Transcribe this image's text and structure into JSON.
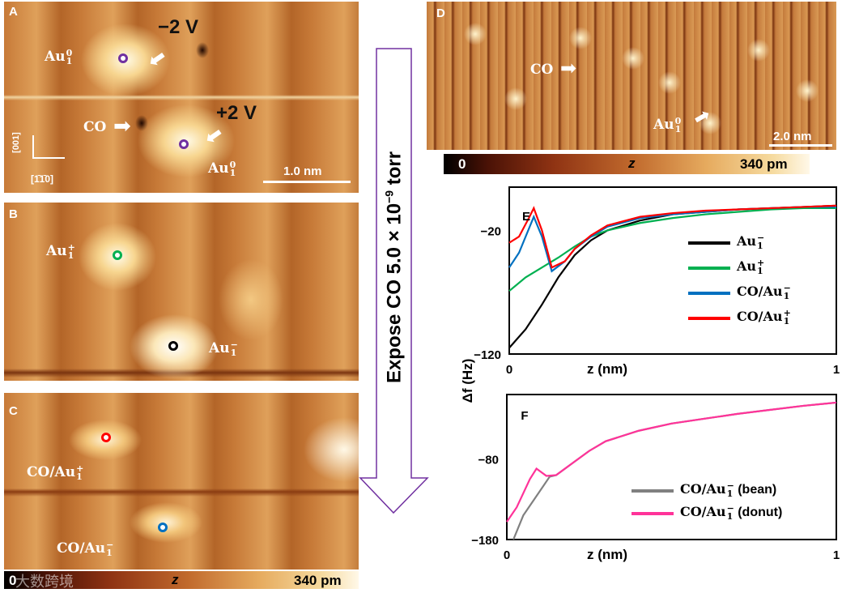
{
  "panels": {
    "A": {
      "label": "A",
      "au_top": {
        "base": "Au",
        "sub": "1",
        "sup": "0"
      },
      "volt_top": "−2 V",
      "co": "CO",
      "volt_bottom": "+2 V",
      "au_bottom": {
        "base": "Au",
        "sub": "1",
        "sup": "0"
      },
      "axis_y": "[001]",
      "axis_x": "[1̄1̄0]",
      "scale": "1.0 nm",
      "marker_color": "#7030a0"
    },
    "B": {
      "label": "B",
      "au_plus": {
        "base": "Au",
        "sub": "1",
        "sup": "+"
      },
      "au_minus": {
        "base": "Au",
        "sub": "1",
        "sup": "−"
      },
      "marker_plus_color": "#00b050",
      "marker_minus_color": "#000000"
    },
    "C": {
      "label": "C",
      "co_plus": {
        "base": "CO/Au",
        "sub": "1",
        "sup": "+"
      },
      "co_minus": {
        "base": "CO/Au",
        "sub": "1",
        "sup": "−"
      },
      "marker_plus_color": "#ff0000",
      "marker_minus_color": "#0070c0"
    },
    "D": {
      "label": "D",
      "co": "CO",
      "au": {
        "base": "Au",
        "sub": "1",
        "sup": "0"
      },
      "scale": "2.0 nm"
    }
  },
  "colorbar_left": {
    "min": "0",
    "label": "z",
    "max": "340 pm"
  },
  "colorbar_right": {
    "min": "0",
    "label": "z",
    "max": "340 pm"
  },
  "expose_arrow": {
    "text": "Expose CO 5.0 × 10",
    "exp": "−9",
    "unit": " torr",
    "color": "#7030a0"
  },
  "watermark": "大数跨境",
  "chart_data": [
    {
      "type": "line",
      "title": "E",
      "xlabel": "z (nm)",
      "ylabel": "Δf (Hz)",
      "xlim": [
        0,
        1
      ],
      "ylim": [
        -120,
        15
      ],
      "xticks": [
        "0",
        "1"
      ],
      "yticks": [
        {
          "v": -20,
          "t": "−20"
        },
        {
          "v": -120,
          "t": "−120"
        }
      ],
      "legend": "right",
      "series": [
        {
          "name": "Au1−",
          "label": {
            "base": "Au",
            "sub": "1",
            "sup": "−"
          },
          "color": "#000000",
          "points": [
            [
              0,
              -115
            ],
            [
              0.05,
              -100
            ],
            [
              0.1,
              -80
            ],
            [
              0.15,
              -58
            ],
            [
              0.2,
              -40
            ],
            [
              0.25,
              -28
            ],
            [
              0.3,
              -20
            ],
            [
              0.4,
              -12
            ],
            [
              0.5,
              -7
            ],
            [
              0.6,
              -5
            ],
            [
              0.7,
              -3
            ],
            [
              0.8,
              -2
            ],
            [
              0.9,
              -1
            ],
            [
              1,
              0
            ]
          ]
        },
        {
          "name": "Au1+",
          "label": {
            "base": "Au",
            "sub": "1",
            "sup": "+"
          },
          "color": "#00b050",
          "points": [
            [
              0,
              -69
            ],
            [
              0.05,
              -58
            ],
            [
              0.1,
              -50
            ],
            [
              0.15,
              -42
            ],
            [
              0.2,
              -33
            ],
            [
              0.25,
              -25
            ],
            [
              0.3,
              -20
            ],
            [
              0.4,
              -14
            ],
            [
              0.5,
              -10
            ],
            [
              0.6,
              -7
            ],
            [
              0.7,
              -5
            ],
            [
              0.8,
              -3
            ],
            [
              0.9,
              -2
            ],
            [
              1,
              -2
            ]
          ]
        },
        {
          "name": "CO/Au1−",
          "label": {
            "base": "CO/Au",
            "sub": "1",
            "sup": "−"
          },
          "color": "#0070c0",
          "points": [
            [
              0,
              -50
            ],
            [
              0.03,
              -38
            ],
            [
              0.075,
              -9
            ],
            [
              0.1,
              -25
            ],
            [
              0.13,
              -53
            ],
            [
              0.17,
              -45
            ],
            [
              0.2,
              -35
            ],
            [
              0.25,
              -25
            ],
            [
              0.3,
              -17
            ],
            [
              0.4,
              -10
            ],
            [
              0.5,
              -7
            ],
            [
              0.6,
              -5
            ],
            [
              0.7,
              -3
            ],
            [
              0.8,
              -2
            ],
            [
              0.9,
              -1
            ],
            [
              1,
              -1
            ]
          ]
        },
        {
          "name": "CO/Au1+",
          "label": {
            "base": "CO/Au",
            "sub": "1",
            "sup": "+"
          },
          "color": "#ff0000",
          "points": [
            [
              0,
              -30
            ],
            [
              0.03,
              -25
            ],
            [
              0.06,
              -10
            ],
            [
              0.075,
              -2
            ],
            [
              0.1,
              -20
            ],
            [
              0.13,
              -50
            ],
            [
              0.17,
              -45
            ],
            [
              0.2,
              -35
            ],
            [
              0.25,
              -24
            ],
            [
              0.3,
              -16
            ],
            [
              0.4,
              -9
            ],
            [
              0.5,
              -6
            ],
            [
              0.6,
              -4
            ],
            [
              0.7,
              -3
            ],
            [
              0.8,
              -2
            ],
            [
              0.9,
              -1
            ],
            [
              1,
              0
            ]
          ]
        }
      ]
    },
    {
      "type": "line",
      "title": "F",
      "xlabel": "z (nm)",
      "ylabel": "Δf (Hz)",
      "xlim": [
        0,
        1
      ],
      "ylim": [
        -180,
        0
      ],
      "xticks": [
        "0",
        "1"
      ],
      "yticks": [
        {
          "v": -80,
          "t": "−80"
        },
        {
          "v": -180,
          "t": "−180"
        }
      ],
      "legend": "bottom-right",
      "series": [
        {
          "name": "CO/Au1− (bean)",
          "label": {
            "base": "CO/Au",
            "sub": "1",
            "sup": "−",
            "suffix": " (bean)"
          },
          "color": "#808080",
          "points": [
            [
              0.02,
              -180
            ],
            [
              0.05,
              -150
            ],
            [
              0.1,
              -120
            ],
            [
              0.13,
              -102
            ],
            [
              0.15,
              -100
            ],
            [
              0.2,
              -85
            ],
            [
              0.25,
              -70
            ],
            [
              0.3,
              -58
            ],
            [
              0.4,
              -45
            ],
            [
              0.5,
              -36
            ],
            [
              0.6,
              -30
            ],
            [
              0.7,
              -24
            ],
            [
              0.8,
              -19
            ],
            [
              0.9,
              -14
            ],
            [
              1,
              -10
            ]
          ]
        },
        {
          "name": "CO/Au1− (donut)",
          "label": {
            "base": "CO/Au",
            "sub": "1",
            "sup": "−",
            "suffix": " (donut)"
          },
          "color": "#ff3399",
          "points": [
            [
              0,
              -158
            ],
            [
              0.03,
              -140
            ],
            [
              0.07,
              -105
            ],
            [
              0.09,
              -92
            ],
            [
              0.12,
              -101
            ],
            [
              0.15,
              -100
            ],
            [
              0.2,
              -85
            ],
            [
              0.25,
              -70
            ],
            [
              0.3,
              -58
            ],
            [
              0.4,
              -45
            ],
            [
              0.5,
              -36
            ],
            [
              0.6,
              -30
            ],
            [
              0.7,
              -24
            ],
            [
              0.8,
              -19
            ],
            [
              0.9,
              -14
            ],
            [
              1,
              -10
            ]
          ]
        }
      ]
    }
  ]
}
